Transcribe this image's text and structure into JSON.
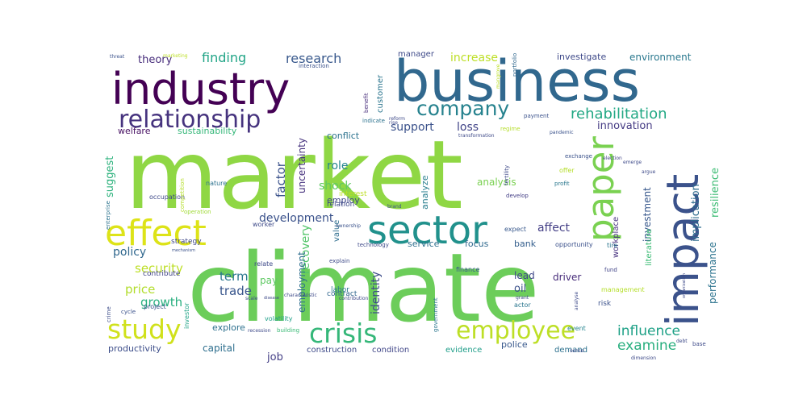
{
  "words": [
    {
      "text": "market",
      "color": "#8fd744"
    },
    {
      "text": "climate",
      "color": "#6ccd5a"
    },
    {
      "text": "business",
      "color": "#31688e"
    },
    {
      "text": "industry",
      "color": "#440154"
    },
    {
      "text": "impact",
      "color": "#3b528b"
    },
    {
      "text": "sector",
      "color": "#21918c"
    },
    {
      "text": "effect",
      "color": "#dde318"
    },
    {
      "text": "paper",
      "color": "#7ad151"
    },
    {
      "text": "relationship",
      "color": "#46337e"
    },
    {
      "text": "company",
      "color": "#26828e"
    },
    {
      "text": "study",
      "color": "#d0e11c"
    },
    {
      "text": "crisis",
      "color": "#35b779"
    },
    {
      "text": "employee",
      "color": "#bddf26"
    },
    {
      "text": "rehabilitation",
      "color": "#22a884"
    },
    {
      "text": "influence",
      "color": "#1fa187"
    },
    {
      "text": "examine",
      "color": "#29af7f"
    },
    {
      "text": "finding",
      "color": "#20a486"
    },
    {
      "text": "research",
      "color": "#38588c"
    },
    {
      "text": "theory",
      "color": "#472d7b"
    },
    {
      "text": "increase",
      "color": "#bddf26"
    },
    {
      "text": "investigate",
      "color": "#3e4989"
    },
    {
      "text": "environment",
      "color": "#2a788e"
    },
    {
      "text": "innovation",
      "color": "#443a83"
    },
    {
      "text": "support",
      "color": "#3b528b"
    },
    {
      "text": "loss",
      "color": "#414487"
    },
    {
      "text": "welfare",
      "color": "#471063"
    },
    {
      "text": "sustainability",
      "color": "#35b779"
    },
    {
      "text": "conflict",
      "color": "#2c728e"
    },
    {
      "text": "suggest",
      "color": "#2db27d"
    },
    {
      "text": "factor",
      "color": "#3b528b"
    },
    {
      "text": "uncertainty",
      "color": "#46327e"
    },
    {
      "text": "role",
      "color": "#25858e"
    },
    {
      "text": "shock",
      "color": "#5ec962"
    },
    {
      "text": "employ",
      "color": "#3f4788"
    },
    {
      "text": "development",
      "color": "#3b528b"
    },
    {
      "text": "recovery",
      "color": "#52c569"
    },
    {
      "text": "affect",
      "color": "#433e85"
    },
    {
      "text": "implication",
      "color": "#2f6c8e"
    },
    {
      "text": "investment",
      "color": "#38588c"
    },
    {
      "text": "resilience",
      "color": "#3dbc74"
    },
    {
      "text": "performance",
      "color": "#2c738e"
    },
    {
      "text": "literature",
      "color": "#3cbb75"
    },
    {
      "text": "workplace",
      "color": "#46307e"
    },
    {
      "text": "policy",
      "color": "#31688e"
    },
    {
      "text": "security",
      "color": "#bddf26"
    },
    {
      "text": "price",
      "color": "#b2dd2d"
    },
    {
      "text": "growth",
      "color": "#29af7f"
    },
    {
      "text": "term",
      "color": "#2a768e"
    },
    {
      "text": "trade",
      "color": "#39568c"
    },
    {
      "text": "employment",
      "color": "#2e6e8e"
    },
    {
      "text": "pay",
      "color": "#5ec962"
    },
    {
      "text": "identity",
      "color": "#3e4c8a"
    },
    {
      "text": "lead",
      "color": "#3f4889"
    },
    {
      "text": "oil",
      "color": "#3b528b"
    },
    {
      "text": "driver",
      "color": "#472c7a"
    },
    {
      "text": "service",
      "color": "#2e6f8e"
    },
    {
      "text": "focus",
      "color": "#306a8e"
    },
    {
      "text": "bank",
      "color": "#355f8d"
    },
    {
      "text": "analysis",
      "color": "#7ad151"
    },
    {
      "text": "analyze",
      "color": "#287d8e"
    },
    {
      "text": "customer",
      "color": "#2b758e"
    },
    {
      "text": "manager",
      "color": "#3e4a89"
    },
    {
      "text": "value",
      "color": "#2e6d8e"
    },
    {
      "text": "job",
      "color": "#433e85"
    },
    {
      "text": "capital",
      "color": "#2e6f8e"
    },
    {
      "text": "explore",
      "color": "#2d708e"
    },
    {
      "text": "productivity",
      "color": "#3d4e8a"
    },
    {
      "text": "construction",
      "color": "#3e4a89"
    },
    {
      "text": "condition",
      "color": "#404688"
    },
    {
      "text": "evidence",
      "color": "#1f9e89"
    },
    {
      "text": "police",
      "color": "#38588c"
    },
    {
      "text": "demand",
      "color": "#2d718e"
    },
    {
      "text": "interest",
      "color": "#bddf26"
    },
    {
      "text": "relation",
      "color": "#3e4a89"
    },
    {
      "text": "nature",
      "color": "#2c728e"
    },
    {
      "text": "occupation",
      "color": "#3e4989"
    },
    {
      "text": "competition",
      "color": "#b5de2b"
    },
    {
      "text": "operation",
      "color": "#a0da39"
    },
    {
      "text": "enterprise",
      "color": "#2c738e"
    },
    {
      "text": "strategy",
      "color": "#3f4788"
    },
    {
      "text": "contribute",
      "color": "#414487"
    },
    {
      "text": "investor",
      "color": "#20a386"
    },
    {
      "text": "crime",
      "color": "#3d4d8a"
    },
    {
      "text": "cycle",
      "color": "#3b528b"
    },
    {
      "text": "project",
      "color": "#3b518b"
    },
    {
      "text": "volatility",
      "color": "#1f9f88"
    },
    {
      "text": "building",
      "color": "#3aba76"
    },
    {
      "text": "labor",
      "color": "#2a778e"
    },
    {
      "text": "contract",
      "color": "#31678e"
    },
    {
      "text": "government",
      "color": "#2a768e"
    },
    {
      "text": "finance",
      "color": "#38588c"
    },
    {
      "text": "event",
      "color": "#25848e"
    },
    {
      "text": "risk",
      "color": "#3b528b"
    },
    {
      "text": "opportunity",
      "color": "#3b518b"
    },
    {
      "text": "fund",
      "color": "#414487"
    },
    {
      "text": "tire",
      "color": "#2b758e"
    },
    {
      "text": "management",
      "color": "#b5de2b"
    },
    {
      "text": "actor",
      "color": "#2a768e"
    },
    {
      "text": "expect",
      "color": "#38588c"
    },
    {
      "text": "develop",
      "color": "#433e85"
    },
    {
      "text": "profit",
      "color": "#2a778e"
    },
    {
      "text": "offer",
      "color": "#b5de2b"
    },
    {
      "text": "fertility",
      "color": "#3e4a89"
    },
    {
      "text": "exchange",
      "color": "#3b528b"
    },
    {
      "text": "election",
      "color": "#414487"
    },
    {
      "text": "payment",
      "color": "#3b528b"
    },
    {
      "text": "interaction",
      "color": "#3b528b"
    },
    {
      "text": "indicate",
      "color": "#2c728e"
    },
    {
      "text": "benefit",
      "color": "#472d7b"
    },
    {
      "text": "portfolio",
      "color": "#31688e"
    },
    {
      "text": "transformation",
      "color": "#3e4a89"
    },
    {
      "text": "regime",
      "color": "#b5de2b"
    },
    {
      "text": "pandemic",
      "color": "#3b528b"
    },
    {
      "text": "marketing",
      "color": "#bddf26"
    },
    {
      "text": "threat",
      "color": "#3b528b"
    },
    {
      "text": "brand",
      "color": "#3b528b"
    },
    {
      "text": "ownership",
      "color": "#3b528b"
    },
    {
      "text": "mechanism",
      "color": "#3b528b"
    },
    {
      "text": "relate",
      "color": "#3e4a89"
    },
    {
      "text": "worker",
      "color": "#3e4a89"
    },
    {
      "text": "technology",
      "color": "#3e4a89"
    },
    {
      "text": "explain",
      "color": "#3e4a89"
    },
    {
      "text": "characteristic",
      "color": "#3e4a89"
    },
    {
      "text": "scale",
      "color": "#3e4a89"
    },
    {
      "text": "disease",
      "color": "#3e4a89"
    },
    {
      "text": "contribution",
      "color": "#3e4a89"
    },
    {
      "text": "grant",
      "color": "#3e4a89"
    },
    {
      "text": "analyse",
      "color": "#3e4a89"
    },
    {
      "text": "recession",
      "color": "#3e4a89"
    },
    {
      "text": "debt",
      "color": "#3e4a89"
    },
    {
      "text": "base",
      "color": "#3e4a89"
    },
    {
      "text": "dimension",
      "color": "#3e4a89"
    },
    {
      "text": "sense",
      "color": "#3e4a89"
    },
    {
      "text": "organization",
      "color": "#3e4a89"
    },
    {
      "text": "emerge",
      "color": "#3e4a89"
    },
    {
      "text": "argue",
      "color": "#3e4a89"
    },
    {
      "text": "reform",
      "color": "#3e4a89"
    },
    {
      "text": "rise",
      "color": "#3e4a89"
    },
    {
      "text": "mangrove",
      "color": "#bddf26"
    }
  ]
}
